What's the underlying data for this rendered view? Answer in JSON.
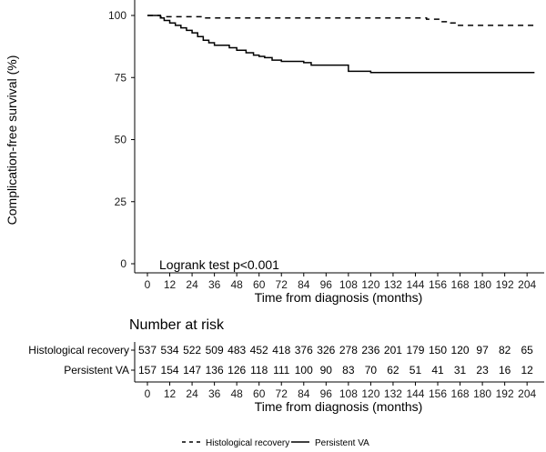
{
  "chart_data": {
    "type": "line",
    "xlabel": "Time from diagnosis (months)",
    "ylabel": "Complication-free survival (%)",
    "xlim": [
      0,
      208
    ],
    "ylim": [
      0,
      100
    ],
    "x_ticks": [
      0,
      12,
      24,
      36,
      48,
      60,
      72,
      84,
      96,
      108,
      120,
      132,
      144,
      156,
      168,
      180,
      192,
      204
    ],
    "y_ticks": [
      0,
      25,
      50,
      75,
      100
    ],
    "annotation": "Logrank test p<0.001",
    "grid": false,
    "legend_position": "bottom",
    "series": [
      {
        "name": "Histological recovery",
        "style": "dashed",
        "x": [
          0,
          7,
          12,
          24,
          30,
          36,
          60,
          120,
          150,
          158,
          163,
          166,
          208
        ],
        "y": [
          100,
          99.5,
          99.5,
          99.5,
          99,
          99,
          99,
          99,
          98.5,
          97.5,
          97,
          96,
          96
        ]
      },
      {
        "name": "Persistent VA",
        "style": "solid",
        "x": [
          0,
          7,
          9,
          12,
          15,
          18,
          21,
          24,
          27,
          30,
          33,
          36,
          44,
          48,
          53,
          57,
          60,
          63,
          67,
          72,
          84,
          88,
          108,
          120,
          208
        ],
        "y": [
          100,
          99,
          98,
          97,
          96,
          95,
          94,
          93,
          91.5,
          90,
          89,
          88,
          87,
          86,
          85,
          84,
          83.5,
          83,
          82,
          81.5,
          81,
          80,
          77.5,
          77,
          77
        ]
      }
    ],
    "risk_table": {
      "title": "Number at risk",
      "x": [
        0,
        12,
        24,
        36,
        48,
        60,
        72,
        84,
        96,
        108,
        120,
        132,
        144,
        156,
        168,
        180,
        192,
        204
      ],
      "rows": [
        {
          "label": "Histological recovery",
          "values": [
            537,
            534,
            522,
            509,
            483,
            452,
            418,
            376,
            326,
            278,
            236,
            201,
            179,
            150,
            120,
            97,
            82,
            65
          ]
        },
        {
          "label": "Persistent VA",
          "values": [
            157,
            154,
            147,
            136,
            126,
            118,
            111,
            100,
            90,
            83,
            70,
            62,
            51,
            41,
            31,
            23,
            16,
            12
          ]
        }
      ],
      "xlabel": "Time from diagnosis (months)"
    }
  }
}
